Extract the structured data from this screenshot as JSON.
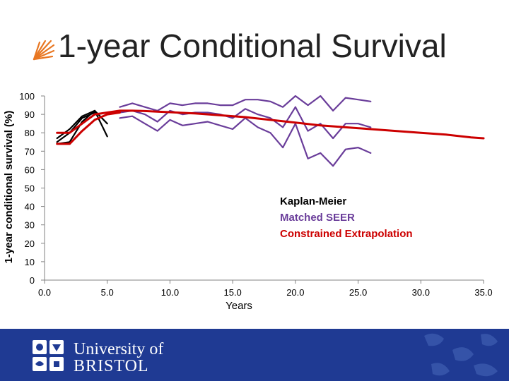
{
  "slide": {
    "title": "1-year Conditional Survival",
    "footer": {
      "line1": "University of",
      "line2": "BRISTOL",
      "background": "#1f3a93",
      "logo": "bristol-crest-icon"
    }
  },
  "chart_data": {
    "type": "line",
    "title": "",
    "xlabel": "Years",
    "ylabel": "1-year conditional survival (%)",
    "xlim": [
      0,
      35
    ],
    "ylim": [
      0,
      100
    ],
    "x_ticks": [
      "0.0",
      "5.0",
      "10.0",
      "15.0",
      "20.0",
      "25.0",
      "30.0",
      "35.0"
    ],
    "y_ticks": [
      "0",
      "10",
      "20",
      "30",
      "40",
      "50",
      "60",
      "70",
      "80",
      "90",
      "100"
    ],
    "grid": false,
    "legend_position": "right-middle",
    "legend": [
      {
        "label": "Kaplan-Meier",
        "color": "#000000"
      },
      {
        "label": "Matched SEER",
        "color": "#6a3d9a"
      },
      {
        "label": "Constrained Extrapolation",
        "color": "#cc0000"
      }
    ],
    "series": [
      {
        "group": "Kaplan-Meier",
        "color": "#000000",
        "points": [
          [
            1,
            77
          ],
          [
            2,
            82
          ],
          [
            3,
            89
          ],
          [
            4,
            92
          ],
          [
            5,
            78
          ]
        ]
      },
      {
        "group": "Kaplan-Meier",
        "color": "#000000",
        "points": [
          [
            1,
            75
          ],
          [
            2,
            80
          ],
          [
            3,
            88
          ],
          [
            4,
            91
          ]
        ]
      },
      {
        "group": "Kaplan-Meier",
        "color": "#000000",
        "points": [
          [
            1,
            74
          ],
          [
            2,
            75
          ],
          [
            3,
            86
          ],
          [
            4,
            92
          ],
          [
            5,
            85
          ]
        ]
      },
      {
        "group": "Matched SEER",
        "color": "#6a3d9a",
        "points": [
          [
            6,
            94
          ],
          [
            7,
            96
          ],
          [
            8,
            94
          ],
          [
            9,
            92
          ],
          [
            10,
            96
          ],
          [
            11,
            95
          ],
          [
            12,
            96
          ],
          [
            13,
            96
          ],
          [
            14,
            95
          ],
          [
            15,
            95
          ],
          [
            16,
            98
          ],
          [
            17,
            98
          ],
          [
            18,
            97
          ],
          [
            19,
            94
          ],
          [
            20,
            100
          ],
          [
            21,
            95
          ],
          [
            22,
            100
          ],
          [
            23,
            92
          ],
          [
            24,
            99
          ],
          [
            25,
            98
          ],
          [
            26,
            97
          ]
        ]
      },
      {
        "group": "Matched SEER",
        "color": "#6a3d9a",
        "points": [
          [
            6,
            91
          ],
          [
            7,
            92
          ],
          [
            8,
            90
          ],
          [
            9,
            86
          ],
          [
            10,
            92
          ],
          [
            11,
            90
          ],
          [
            12,
            91
          ],
          [
            13,
            91
          ],
          [
            14,
            90
          ],
          [
            15,
            88
          ],
          [
            16,
            93
          ],
          [
            17,
            90
          ],
          [
            18,
            88
          ],
          [
            19,
            83
          ],
          [
            20,
            94
          ],
          [
            21,
            81
          ],
          [
            22,
            85
          ],
          [
            23,
            77
          ],
          [
            24,
            85
          ],
          [
            25,
            85
          ],
          [
            26,
            83
          ]
        ]
      },
      {
        "group": "Matched SEER",
        "color": "#6a3d9a",
        "points": [
          [
            6,
            88
          ],
          [
            7,
            89
          ],
          [
            8,
            85
          ],
          [
            9,
            81
          ],
          [
            10,
            87
          ],
          [
            11,
            84
          ],
          [
            12,
            85
          ],
          [
            13,
            86
          ],
          [
            14,
            84
          ],
          [
            15,
            82
          ],
          [
            16,
            88
          ],
          [
            17,
            83
          ],
          [
            18,
            80
          ],
          [
            19,
            72
          ],
          [
            20,
            85
          ],
          [
            21,
            66
          ],
          [
            22,
            69
          ],
          [
            23,
            62
          ],
          [
            24,
            71
          ],
          [
            25,
            72
          ],
          [
            26,
            69
          ]
        ]
      },
      {
        "group": "Constrained Extrapolation",
        "color": "#cc0000",
        "points": [
          [
            1,
            80
          ],
          [
            2,
            80
          ],
          [
            3,
            85
          ],
          [
            4,
            90
          ],
          [
            5,
            91
          ],
          [
            6,
            92
          ],
          [
            7,
            92
          ],
          [
            8,
            91.8
          ],
          [
            9,
            91.5
          ],
          [
            10,
            91.2
          ],
          [
            12,
            90.5
          ],
          [
            14,
            89.5
          ],
          [
            16,
            88.5
          ],
          [
            18,
            87
          ],
          [
            20,
            85.5
          ],
          [
            22,
            84
          ],
          [
            24,
            83
          ],
          [
            26,
            82
          ],
          [
            28,
            81
          ],
          [
            30,
            80
          ],
          [
            32,
            79
          ],
          [
            34,
            77.5
          ],
          [
            35,
            77
          ]
        ]
      },
      {
        "group": "Constrained Extrapolation",
        "color": "#cc0000",
        "points": [
          [
            1,
            74
          ],
          [
            2,
            74
          ],
          [
            3,
            81
          ],
          [
            4,
            87
          ],
          [
            5,
            90
          ],
          [
            6,
            91
          ]
        ]
      }
    ]
  }
}
